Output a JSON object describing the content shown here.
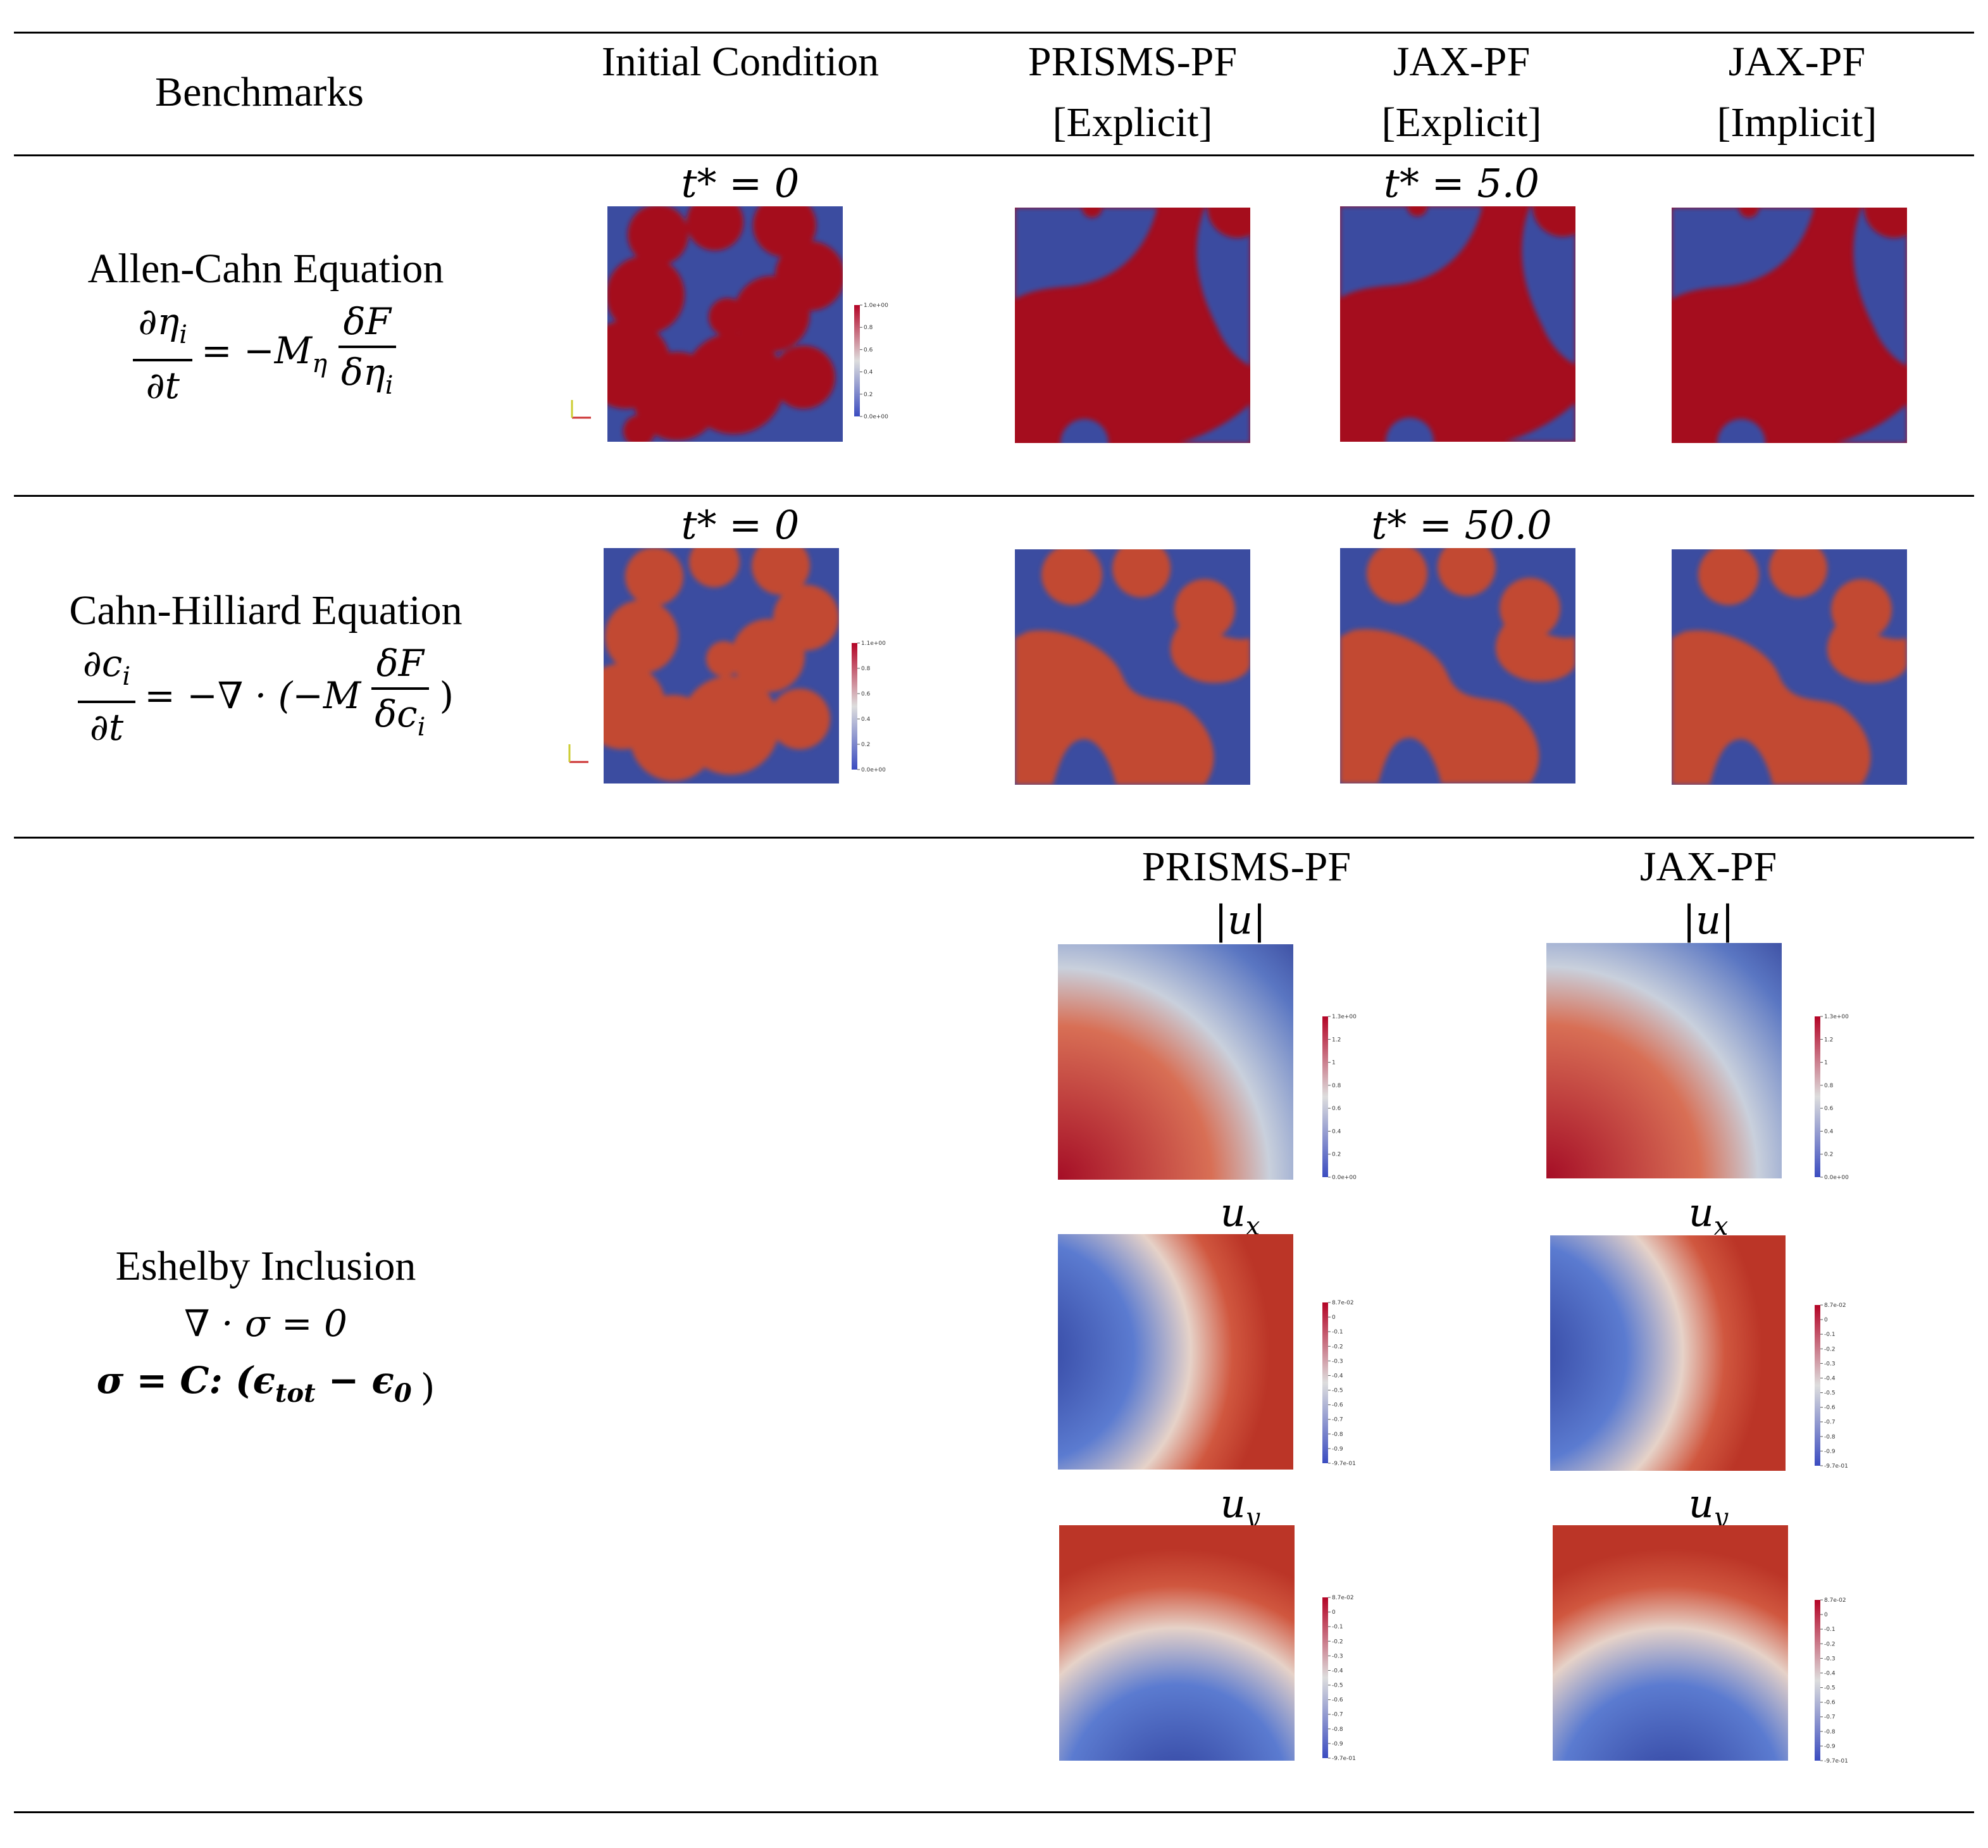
{
  "header": {
    "benchmarks": "Benchmarks",
    "initial_condition": "Initial Condition",
    "prisms_explicit_line1": "PRISMS-PF",
    "prisms_explicit_line2": "[Explicit]",
    "jax_explicit_line1": "JAX-PF",
    "jax_explicit_line2": "[Explicit]",
    "jax_implicit_line1": "JAX-PF",
    "jax_implicit_line2": "[Implicit]"
  },
  "rows": [
    {
      "name": "Allen-Cahn Equation",
      "eq_lhs_num": "∂η",
      "eq_lhs_num_sub": "i",
      "eq_lhs_den": "∂t",
      "eq_mid": "= −M",
      "eq_mid_sub": "η",
      "eq_rhs_num": "δF",
      "eq_rhs_den": "δη",
      "eq_rhs_den_sub": "i",
      "t_initial": "t* = 0",
      "t_final": "t* = 5.0",
      "colorbar_ticks": [
        "1.0e+00",
        "0.8",
        "0.6",
        "0.4",
        "0.2",
        "0.0e+00"
      ]
    },
    {
      "name": "Cahn-Hilliard Equation",
      "eq_lhs_num": "∂c",
      "eq_lhs_num_sub": "i",
      "eq_lhs_den": "∂t",
      "eq_mid": "= −∇ · (−M",
      "eq_rhs_num": "δF",
      "eq_rhs_den": "δc",
      "eq_rhs_den_sub": "i",
      "eq_close": ")",
      "t_initial": "t* = 0",
      "t_final": "t* = 50.0",
      "colorbar_ticks": [
        "1.1e+00",
        "0.8",
        "0.6",
        "0.4",
        "0.2",
        "0.0e+00"
      ]
    },
    {
      "name": "Eshelby Inclusion",
      "eq1": "∇ · σ = 0",
      "eq2_prefix": "σ = C: (ϵ",
      "eq2_sub": "tot",
      "eq2_mid": " − ϵ",
      "eq2_sub2": "0",
      "eq2_close": ")",
      "prisms_title": "PRISMS-PF",
      "jax_title": "JAX-PF",
      "label_u": "|u|",
      "label_ux": "u",
      "label_ux_sub": "x",
      "label_uy": "u",
      "label_uy_sub": "y",
      "cbar_u_ticks": [
        "1.3e+00",
        "1.2",
        "1",
        "0.8",
        "0.6",
        "0.4",
        "0.2",
        "0.0e+00"
      ],
      "cbar_uxy_ticks": [
        "8.7e-02",
        "0",
        "-0.1",
        "-0.2",
        "-0.3",
        "-0.4",
        "-0.5",
        "-0.6",
        "-0.7",
        "-0.8",
        "-0.9",
        "-9.7e-01"
      ]
    }
  ],
  "colors": {
    "red": "#a50d1e",
    "blue": "#3b4ca0",
    "mid_red": "#c0503a"
  }
}
